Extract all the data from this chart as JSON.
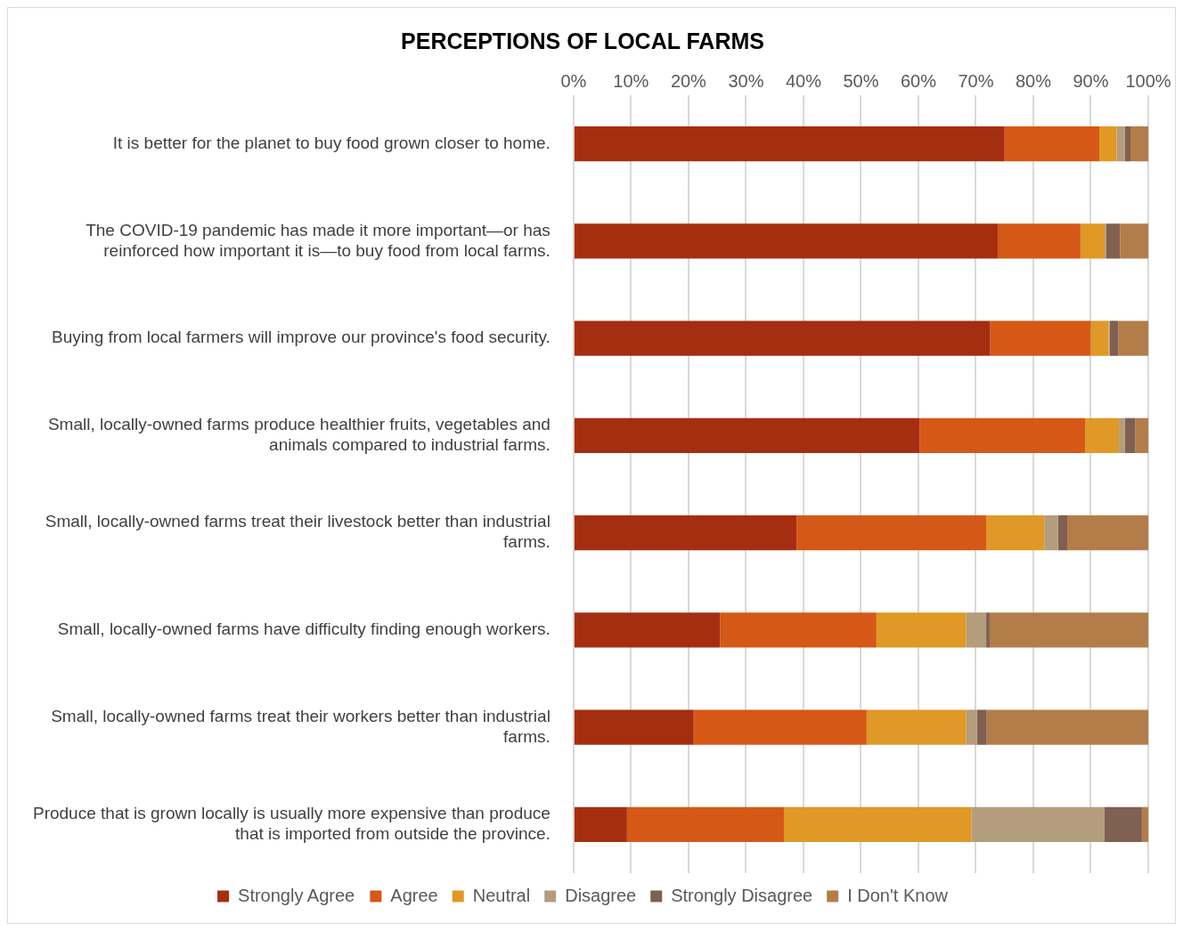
{
  "chart_data": {
    "type": "bar",
    "orientation": "horizontal",
    "stacked": true,
    "title": "PERCEPTIONS OF LOCAL FARMS",
    "categories": [
      "It is better for the planet to buy food grown closer to home.",
      "The COVID-19 pandemic has made it more important—or has reinforced how important it is—to buy food from local farms.",
      "Buying from local farmers will improve our province's food security.",
      "Small, locally-owned farms produce healthier fruits, vegetables and animals compared to industrial farms.",
      "Small, locally-owned farms treat their livestock better than industrial farms.",
      "Small, locally-owned farms have difficulty finding enough workers.",
      "Small, locally-owned farms treat their workers better than industrial farms.",
      "Produce that is grown locally is usually more expensive than produce that is imported from outside the province."
    ],
    "series": [
      {
        "name": "Strongly Agree",
        "color": "#a52e10",
        "values": [
          75.0,
          73.8,
          72.5,
          60.2,
          38.8,
          25.5,
          20.9,
          9.3
        ]
      },
      {
        "name": "Agree",
        "color": "#d55816",
        "values": [
          16.5,
          14.4,
          17.5,
          28.8,
          33.0,
          27.2,
          30.1,
          27.3
        ]
      },
      {
        "name": "Neutral",
        "color": "#e09826",
        "values": [
          3.0,
          4.2,
          3.1,
          5.9,
          10.1,
          15.6,
          17.3,
          32.6
        ]
      },
      {
        "name": "Disagree",
        "color": "#b39d7d",
        "values": [
          1.4,
          0.3,
          0.2,
          1.0,
          2.4,
          3.5,
          1.9,
          23.2
        ]
      },
      {
        "name": "Strongly Disagree",
        "color": "#7f6051",
        "values": [
          1.0,
          2.4,
          1.5,
          1.8,
          1.6,
          0.6,
          1.7,
          6.5
        ]
      },
      {
        "name": "I Don't Know",
        "color": "#b37d4a",
        "values": [
          3.1,
          4.9,
          5.2,
          2.3,
          14.1,
          27.6,
          28.1,
          1.1
        ]
      }
    ],
    "xlim": [
      0,
      100
    ],
    "xticks": [
      {
        "value": 0,
        "label": "0%"
      },
      {
        "value": 10,
        "label": "10%"
      },
      {
        "value": 20,
        "label": "20%"
      },
      {
        "value": 30,
        "label": "30%"
      },
      {
        "value": 40,
        "label": "40%"
      },
      {
        "value": 50,
        "label": "50%"
      },
      {
        "value": 60,
        "label": "60%"
      },
      {
        "value": 70,
        "label": "70%"
      },
      {
        "value": 80,
        "label": "80%"
      },
      {
        "value": 90,
        "label": "90%"
      },
      {
        "value": 100,
        "label": "100%"
      }
    ],
    "grid": "x",
    "legend": "bottom"
  }
}
